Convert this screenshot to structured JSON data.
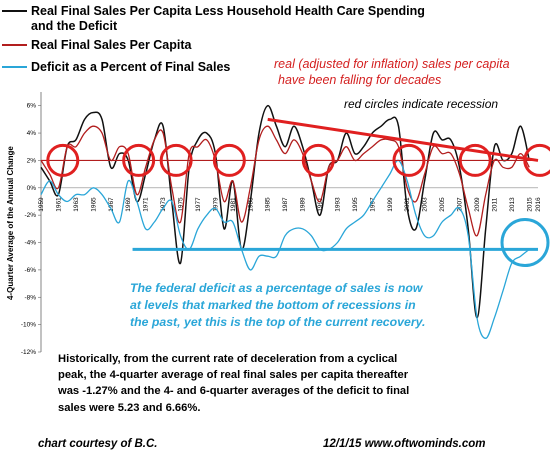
{
  "colors": {
    "black_series": "#111111",
    "red_series": "#b21e1e",
    "blue_series": "#2aa6d8",
    "annotation_red": "#e02020",
    "annotation_blue": "#2aa6d8"
  },
  "legend": [
    {
      "label": "Real Final Sales Per Capita Less Household Health Care Spending",
      "label2": "and the Deficit",
      "color": "#111111"
    },
    {
      "label": "Real Final Sales Per Capita",
      "color": "#b21e1e"
    },
    {
      "label": "Deficit as a Percent of Final Sales",
      "color": "#2aa6d8"
    }
  ],
  "notes": {
    "red_note_line1": "real (adjusted for inflation) sales per capita",
    "red_note_line2": "have been falling for decades",
    "circles_note": "red circles indicate recession",
    "blue_note_line1": "The federal deficit as a percentage of sales is now",
    "blue_note_line2": "at levels that marked the bottom of recessions in",
    "blue_note_line3": "the past, yet this is the top of the current recovery.",
    "body_line1": "Historically, from the current rate of deceleration from a cyclical",
    "body_line2": "peak, the 4-quarter average of real final sales per capita thereafter",
    "body_line3": "was -1.27% and the 4- and 6-quarter averages of the deficit to final",
    "body_line4": "sales were  5.23 and 6.66%.",
    "footer_left": "chart courtesy of B.C.",
    "footer_right": "12/1/15    www.oftwominds.com"
  },
  "chart_data": {
    "type": "line",
    "ylabel": "4-Quarter Average of the Annual Change",
    "xlabel": "",
    "ylim": [
      -12,
      7
    ],
    "yticks": [
      "-12%",
      "-10%",
      "-8%",
      "-6%",
      "-4%",
      "-2%",
      "0%",
      "2%",
      "4%",
      "6%"
    ],
    "x_categories": [
      "1959",
      "1961",
      "1963",
      "1965",
      "1967",
      "1969",
      "1971",
      "1973",
      "1975",
      "1977",
      "1979",
      "1981",
      "1983",
      "1985",
      "1987",
      "1989",
      "1991",
      "1993",
      "1995",
      "1997",
      "1999",
      "2001",
      "2003",
      "2005",
      "2007",
      "2009",
      "2011",
      "2013",
      "2015",
      "2016"
    ],
    "xlim": [
      1959,
      2016
    ],
    "series": [
      {
        "name": "Real Final Sales Per Capita Less Household Health Care Spending and the Deficit",
        "x": [
          1959,
          1960,
          1961,
          1962,
          1963,
          1964,
          1965,
          1966,
          1967,
          1968,
          1969,
          1970,
          1971,
          1972,
          1973,
          1974,
          1975,
          1976,
          1977,
          1978,
          1979,
          1980,
          1981,
          1982,
          1983,
          1984,
          1985,
          1986,
          1987,
          1988,
          1989,
          1990,
          1991,
          1992,
          1993,
          1994,
          1995,
          1996,
          1997,
          1998,
          1999,
          2000,
          2001,
          2002,
          2003,
          2004,
          2005,
          2006,
          2007,
          2008,
          2009,
          2010,
          2011,
          2012,
          2013,
          2014,
          2015
        ],
        "values": [
          1.5,
          0.5,
          -0.5,
          3.0,
          3.5,
          5.0,
          5.5,
          5.0,
          1.5,
          2.5,
          2.0,
          -1.0,
          1.0,
          3.5,
          4.5,
          -1.0,
          -5.5,
          1.5,
          3.5,
          4.0,
          2.5,
          -3.0,
          0.5,
          -4.5,
          -1.0,
          4.0,
          6.0,
          4.5,
          3.0,
          4.5,
          3.0,
          0.5,
          -2.0,
          1.5,
          2.0,
          4.0,
          2.5,
          3.0,
          4.0,
          4.5,
          5.0,
          4.5,
          -1.5,
          -3.0,
          0.5,
          4.0,
          3.5,
          3.5,
          1.5,
          -3.0,
          -9.5,
          -3.0,
          3.0,
          2.0,
          2.5,
          4.5,
          2.0
        ]
      },
      {
        "name": "Real Final Sales Per Capita",
        "x": [
          1959,
          1960,
          1961,
          1962,
          1963,
          1964,
          1965,
          1966,
          1967,
          1968,
          1969,
          1970,
          1971,
          1972,
          1973,
          1974,
          1975,
          1976,
          1977,
          1978,
          1979,
          1980,
          1981,
          1982,
          1983,
          1984,
          1985,
          1986,
          1987,
          1988,
          1989,
          1990,
          1991,
          1992,
          1993,
          1994,
          1995,
          1996,
          1997,
          1998,
          1999,
          2000,
          2001,
          2002,
          2003,
          2004,
          2005,
          2006,
          2007,
          2008,
          2009,
          2010,
          2011,
          2012,
          2013,
          2014,
          2015
        ],
        "values": [
          2.0,
          1.0,
          0.0,
          3.0,
          3.0,
          4.0,
          4.5,
          4.0,
          2.0,
          3.0,
          2.5,
          -0.5,
          1.5,
          3.5,
          4.0,
          0.0,
          -2.5,
          2.5,
          3.0,
          3.5,
          2.0,
          -1.0,
          0.5,
          -2.5,
          0.0,
          3.5,
          4.5,
          3.5,
          2.5,
          3.5,
          2.5,
          0.5,
          -1.0,
          1.5,
          2.0,
          3.0,
          2.0,
          2.5,
          3.0,
          3.5,
          3.5,
          3.0,
          0.0,
          -1.0,
          1.0,
          3.0,
          2.5,
          2.5,
          1.0,
          -1.5,
          -3.5,
          -0.5,
          2.0,
          1.5,
          1.5,
          2.5,
          1.5
        ]
      },
      {
        "name": "Deficit as a Percent of Final Sales",
        "x": [
          1959,
          1960,
          1961,
          1962,
          1963,
          1964,
          1965,
          1966,
          1967,
          1968,
          1969,
          1970,
          1971,
          1972,
          1973,
          1974,
          1975,
          1976,
          1977,
          1978,
          1979,
          1980,
          1981,
          1982,
          1983,
          1984,
          1985,
          1986,
          1987,
          1988,
          1989,
          1990,
          1991,
          1992,
          1993,
          1994,
          1995,
          1996,
          1997,
          1998,
          1999,
          2000,
          2001,
          2002,
          2003,
          2004,
          2005,
          2006,
          2007,
          2008,
          2009,
          2010,
          2011,
          2012,
          2013,
          2014,
          2015
        ],
        "values": [
          -0.5,
          0.5,
          -0.5,
          -1.0,
          -0.5,
          -0.5,
          0.0,
          -0.5,
          -1.5,
          -2.5,
          0.5,
          -1.0,
          -3.0,
          -2.5,
          -1.5,
          -1.0,
          -3.5,
          -4.5,
          -3.0,
          -2.0,
          -1.5,
          -2.5,
          -2.5,
          -4.5,
          -6.0,
          -5.0,
          -5.0,
          -5.0,
          -3.5,
          -3.0,
          -3.0,
          -3.5,
          -4.5,
          -4.5,
          -4.0,
          -3.0,
          -2.5,
          -2.0,
          -1.0,
          0.0,
          1.0,
          2.0,
          0.5,
          -2.0,
          -3.5,
          -3.5,
          -2.5,
          -2.0,
          -1.5,
          -3.5,
          -9.5,
          -11.0,
          -9.5,
          -7.5,
          -5.5,
          -5.0,
          -4.5
        ]
      }
    ],
    "annotations": {
      "recession_circle_years": [
        1961.5,
        1970.2,
        1974.5,
        1980.6,
        1990.8,
        2001.2,
        2008.8,
        2016.2
      ],
      "recession_circle_level": 2.0,
      "red_trend_line": {
        "x": [
          1985,
          2016
        ],
        "y": [
          5.0,
          2.0
        ]
      },
      "red_horizontal_line": {
        "x": [
          1959,
          2016
        ],
        "y": [
          2.0,
          2.0
        ]
      },
      "blue_horizontal_line": {
        "x": [
          1969.5,
          2016
        ],
        "y": [
          -4.5,
          -4.5
        ]
      },
      "blue_circle_year": 2016.5,
      "blue_circle_level": -4.0
    },
    "grid": false,
    "legend_position": "top-left"
  }
}
